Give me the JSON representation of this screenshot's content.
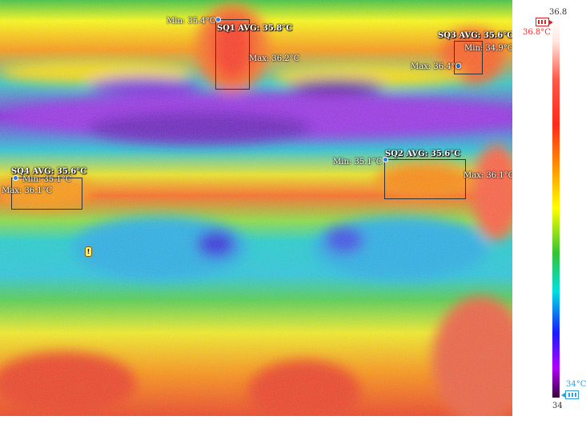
{
  "image": {
    "roi": [
      {
        "label": "SQ1 AVG: 35.8°C",
        "min": "Min: 35.4°C",
        "max": "Max: 36.2°C"
      },
      {
        "label": "SQ2 AVG: 35.6°C",
        "min": "Min: 35.1°C",
        "max": "Max: 36.1°C"
      },
      {
        "label": "SQ3 AVG: 35.6°C",
        "min": "Min: 34.9°C",
        "max": "Max: 36.4°C"
      },
      {
        "label": "SQ4 AVG: 35.6°C",
        "min": "Min: 35.1°C",
        "max": "Max: 36.1°C"
      }
    ]
  },
  "scale": {
    "top_value": "36.8",
    "bottom_value": "34",
    "high_marker": "36.8°C",
    "low_marker": "34°C",
    "high_color": "#ff2a2a",
    "low_color": "#2aa0e0"
  }
}
